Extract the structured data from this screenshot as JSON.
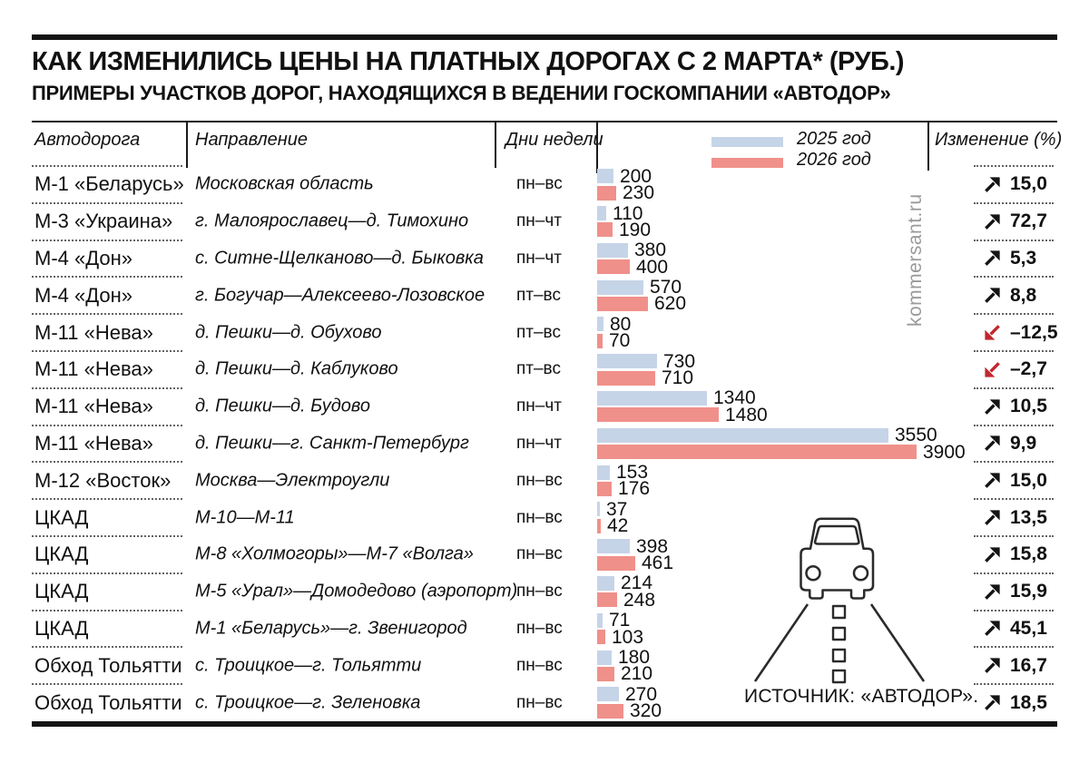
{
  "title": "КАК ИЗМЕНИЛИСЬ ЦЕНЫ НА ПЛАТНЫХ ДОРОГАХ С 2 МАРТА* (РУБ.)",
  "subtitle": "ПРИМЕРЫ УЧАСТКОВ ДОРОГ, НАХОДЯЩИХСЯ В ВЕДЕНИИ ГОСКОМПАНИИ «АВТОДОР»",
  "columns": {
    "road": "Автодорога",
    "direction": "Направление",
    "days": "Дни недели",
    "change": "Изменение (%)"
  },
  "legend": {
    "y2025": "2025 год",
    "y2026": "2026 год"
  },
  "colors": {
    "bar2025": "#c6d4e8",
    "bar2026": "#f0908a",
    "negative": "#c2272d",
    "text": "#111111"
  },
  "watermark": "kommersant.ru",
  "source": "ИСТОЧНИК: «АВТОДОР».",
  "rows": [
    {
      "road": "М-1 «Беларусь»",
      "direction": "Московская область",
      "days": "пн–вс",
      "v2025": 200,
      "v2026": 230,
      "change": "15,0",
      "trend": "up"
    },
    {
      "road": "М-3 «Украина»",
      "direction": "г. Малоярославец—д. Тимохино",
      "days": "пн–чт",
      "v2025": 110,
      "v2026": 190,
      "change": "72,7",
      "trend": "up"
    },
    {
      "road": "М-4 «Дон»",
      "direction": "с. Ситне-Щелканово—д. Быковка",
      "days": "пн–чт",
      "v2025": 380,
      "v2026": 400,
      "change": "5,3",
      "trend": "up"
    },
    {
      "road": "М-4 «Дон»",
      "direction": "г. Богучар—Алексеево-Лозовское",
      "days": "пт–вс",
      "v2025": 570,
      "v2026": 620,
      "change": "8,8",
      "trend": "up"
    },
    {
      "road": "М-11 «Нева»",
      "direction": "д. Пешки—д. Обухово",
      "days": "пт–вс",
      "v2025": 80,
      "v2026": 70,
      "change": "–12,5",
      "trend": "down"
    },
    {
      "road": "М-11 «Нева»",
      "direction": "д. Пешки—д. Каблуково",
      "days": "пт–вс",
      "v2025": 730,
      "v2026": 710,
      "change": "–2,7",
      "trend": "down"
    },
    {
      "road": "М-11 «Нева»",
      "direction": "д. Пешки—д. Будово",
      "days": "пн–чт",
      "v2025": 1340,
      "v2026": 1480,
      "change": "10,5",
      "trend": "up"
    },
    {
      "road": "М-11 «Нева»",
      "direction": "д. Пешки—г. Санкт-Петербург",
      "days": "пн–чт",
      "v2025": 3550,
      "v2026": 3900,
      "change": "9,9",
      "trend": "up"
    },
    {
      "road": "М-12 «Восток»",
      "direction": "Москва—Электроугли",
      "days": "пн–вс",
      "v2025": 153,
      "v2026": 176,
      "change": "15,0",
      "trend": "up"
    },
    {
      "road": "ЦКАД",
      "direction": "М-10—М-11",
      "days": "пн–вс",
      "v2025": 37,
      "v2026": 42,
      "change": "13,5",
      "trend": "up"
    },
    {
      "road": "ЦКАД",
      "direction": "М-8 «Холмогоры»—М-7 «Волга»",
      "days": "пн–вс",
      "v2025": 398,
      "v2026": 461,
      "change": "15,8",
      "trend": "up"
    },
    {
      "road": "ЦКАД",
      "direction": "М-5 «Урал»—Домодедово (аэропорт)",
      "days": "пн–вс",
      "v2025": 214,
      "v2026": 248,
      "change": "15,9",
      "trend": "up"
    },
    {
      "road": "ЦКАД",
      "direction": "М-1 «Беларусь»—г. Звенигород",
      "days": "пн–вс",
      "v2025": 71,
      "v2026": 103,
      "change": "45,1",
      "trend": "up"
    },
    {
      "road": "Обход Тольятти",
      "direction": "с. Троицкое—г. Тольятти",
      "days": "пн–вс",
      "v2025": 180,
      "v2026": 210,
      "change": "16,7",
      "trend": "up"
    },
    {
      "road": "Обход Тольятти",
      "direction": "с. Троицкое—г. Зеленовка",
      "days": "пн–вс",
      "v2025": 270,
      "v2026": 320,
      "change": "18,5",
      "trend": "up"
    }
  ],
  "chart_data": {
    "type": "bar",
    "orientation": "horizontal",
    "title": "КАК ИЗМЕНИЛИСЬ ЦЕНЫ НА ПЛАТНЫХ ДОРОГАХ С 2 МАРТА (РУБ.)",
    "unit": "руб.",
    "grid": false,
    "legend_position": "top",
    "categories": [
      "М-1 «Беларусь»: Московская область (пн–вс)",
      "М-3 «Украина»: г. Малоярославец—д. Тимохино (пн–чт)",
      "М-4 «Дон»: с. Ситне-Щелканово—д. Быковка (пн–чт)",
      "М-4 «Дон»: г. Богучар—Алексеево-Лозовское (пт–вс)",
      "М-11 «Нева»: д. Пешки—д. Обухово (пт–вс)",
      "М-11 «Нева»: д. Пешки—д. Каблуково (пт–вс)",
      "М-11 «Нева»: д. Пешки—д. Будово (пн–чт)",
      "М-11 «Нева»: д. Пешки—г. Санкт-Петербург (пн–чт)",
      "М-12 «Восток»: Москва—Электроугли (пн–вс)",
      "ЦКАД: М-10—М-11 (пн–вс)",
      "ЦКАД: М-8 «Холмогоры»—М-7 «Волга» (пн–вс)",
      "ЦКАД: М-5 «Урал»—Домодедово (аэропорт) (пн–вс)",
      "ЦКАД: М-1 «Беларусь»—г. Звенигород (пн–вс)",
      "Обход Тольятти: с. Троицкое—г. Тольятти (пн–вс)",
      "Обход Тольятти: с. Троицкое—г. Зеленовка (пн–вс)"
    ],
    "series": [
      {
        "name": "2025 год",
        "color": "#c6d4e8",
        "values": [
          200,
          110,
          380,
          570,
          80,
          730,
          1340,
          3550,
          153,
          37,
          398,
          214,
          71,
          180,
          270
        ]
      },
      {
        "name": "2026 год",
        "color": "#f0908a",
        "values": [
          230,
          190,
          400,
          620,
          70,
          710,
          1480,
          3900,
          176,
          42,
          461,
          248,
          103,
          210,
          320
        ]
      }
    ],
    "change_percent": [
      15.0,
      72.7,
      5.3,
      8.8,
      -12.5,
      -2.7,
      10.5,
      9.9,
      15.0,
      13.5,
      15.8,
      15.9,
      45.1,
      16.7,
      18.5
    ]
  }
}
